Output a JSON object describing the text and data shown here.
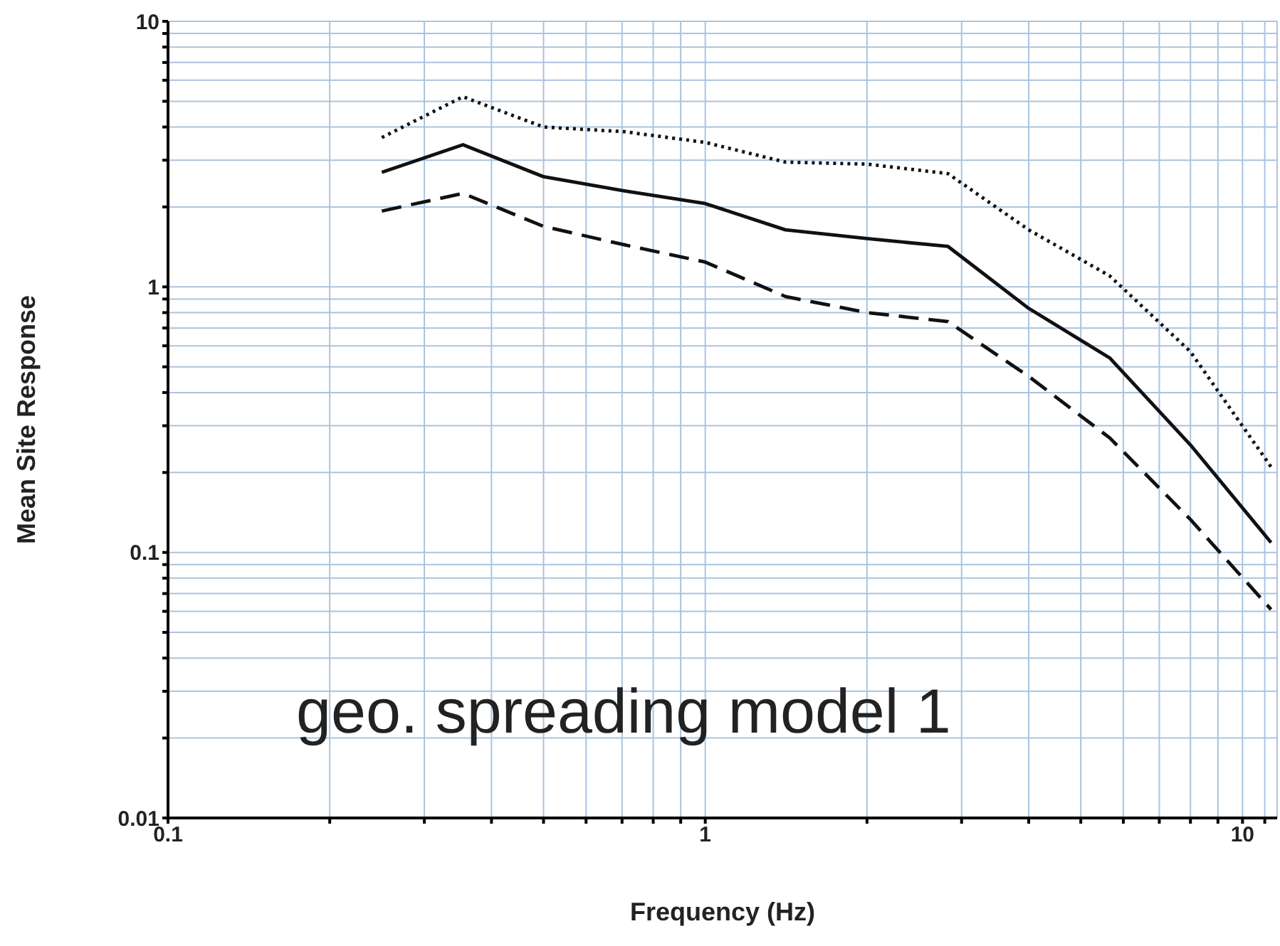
{
  "chart_data": {
    "type": "line",
    "xlabel": "Frequency (Hz)",
    "ylabel": "Mean Site Response",
    "log": "xy",
    "grid": true,
    "x": [
      0.25,
      0.354,
      0.5,
      0.707,
      1,
      1.41,
      2,
      2.83,
      4,
      5.66,
      8,
      11.3
    ],
    "series": [
      {
        "color": "#111111",
        "line_style": "dotted",
        "values": [
          3.65,
          5.2,
          4.0,
          3.84,
          3.5,
          2.95,
          2.9,
          2.67,
          1.64,
          1.1,
          0.57,
          0.21
        ]
      },
      {
        "color": "#111111",
        "line_style": "solid",
        "values": [
          2.7,
          3.43,
          2.6,
          2.3,
          2.06,
          1.64,
          1.52,
          1.42,
          0.83,
          0.54,
          0.254,
          0.109
        ]
      },
      {
        "color": "#111111",
        "line_style": "dashed",
        "values": [
          1.93,
          2.25,
          1.69,
          1.44,
          1.24,
          0.92,
          0.8,
          0.74,
          0.46,
          0.27,
          0.133,
          0.061
        ]
      }
    ],
    "xlim": [
      0.1,
      11.6
    ],
    "xticks": [
      0.1,
      {
        "value": 0.2,
        "label": null
      },
      {
        "value": 0.3,
        "label": null
      },
      {
        "value": 0.4,
        "label": null
      },
      {
        "value": 0.5,
        "label": null
      },
      {
        "value": 0.6,
        "label": null
      },
      {
        "value": 0.7,
        "label": null
      },
      {
        "value": 0.8,
        "label": null
      },
      {
        "value": 0.9,
        "label": null
      },
      1,
      {
        "value": 2,
        "label": null
      },
      {
        "value": 3,
        "label": null
      },
      {
        "value": 4,
        "label": null
      },
      {
        "value": 5,
        "label": null
      },
      {
        "value": 6,
        "label": null
      },
      {
        "value": 7,
        "label": null
      },
      {
        "value": 8,
        "label": null
      },
      {
        "value": 9,
        "label": null
      },
      10,
      {
        "value": 11,
        "label": null
      }
    ],
    "ylim": [
      0.01,
      10
    ],
    "yticks": [
      0.01,
      {
        "value": 0.02,
        "label": null
      },
      {
        "value": 0.03,
        "label": null
      },
      {
        "value": 0.04,
        "label": null
      },
      {
        "value": 0.05,
        "label": null
      },
      {
        "value": 0.06,
        "label": null
      },
      {
        "value": 0.07,
        "label": null
      },
      {
        "value": 0.08,
        "label": null
      },
      {
        "value": 0.09,
        "label": null
      },
      0.1,
      {
        "value": 0.2,
        "label": null
      },
      {
        "value": 0.3,
        "label": null
      },
      {
        "value": 0.4,
        "label": null
      },
      {
        "value": 0.5,
        "label": null
      },
      {
        "value": 0.6,
        "label": null
      },
      {
        "value": 0.7,
        "label": null
      },
      {
        "value": 0.8,
        "label": null
      },
      {
        "value": 0.9,
        "label": null
      },
      1,
      {
        "value": 2,
        "label": null
      },
      {
        "value": 3,
        "label": null
      },
      {
        "value": 4,
        "label": null
      },
      {
        "value": 5,
        "label": null
      },
      {
        "value": 6,
        "label": null
      },
      {
        "value": 7,
        "label": null
      },
      {
        "value": 8,
        "label": null
      },
      {
        "value": 9,
        "label": null
      },
      10
    ],
    "annotations": [
      "geo. spreading model 1"
    ]
  }
}
